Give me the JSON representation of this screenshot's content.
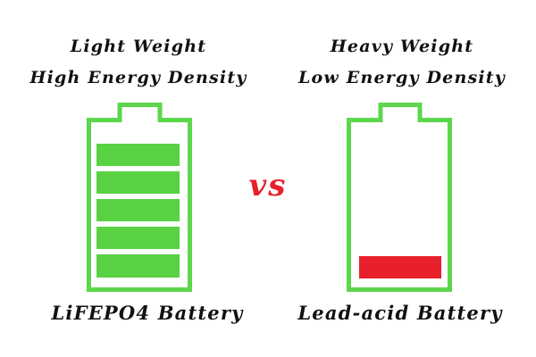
{
  "left": {
    "line1": "Light Weight",
    "line2": "High Energy Density",
    "label": "LiFEPO4 Battery",
    "charge_level": "5 of 5 segments",
    "color": "#5cd64c",
    "fill_color": "#58d243"
  },
  "right": {
    "line1": "Heavy Weight",
    "line2": "Low Energy Density",
    "label": "Lead-acid Battery",
    "charge_level": "1 of 5 segments",
    "color": "#5cd64c",
    "fill_color": "#e8202c"
  },
  "center": {
    "vs_text": "vs",
    "vs_color": "#e8202c"
  },
  "icons": {
    "left_battery": "battery-full-icon",
    "right_battery": "battery-low-icon"
  }
}
